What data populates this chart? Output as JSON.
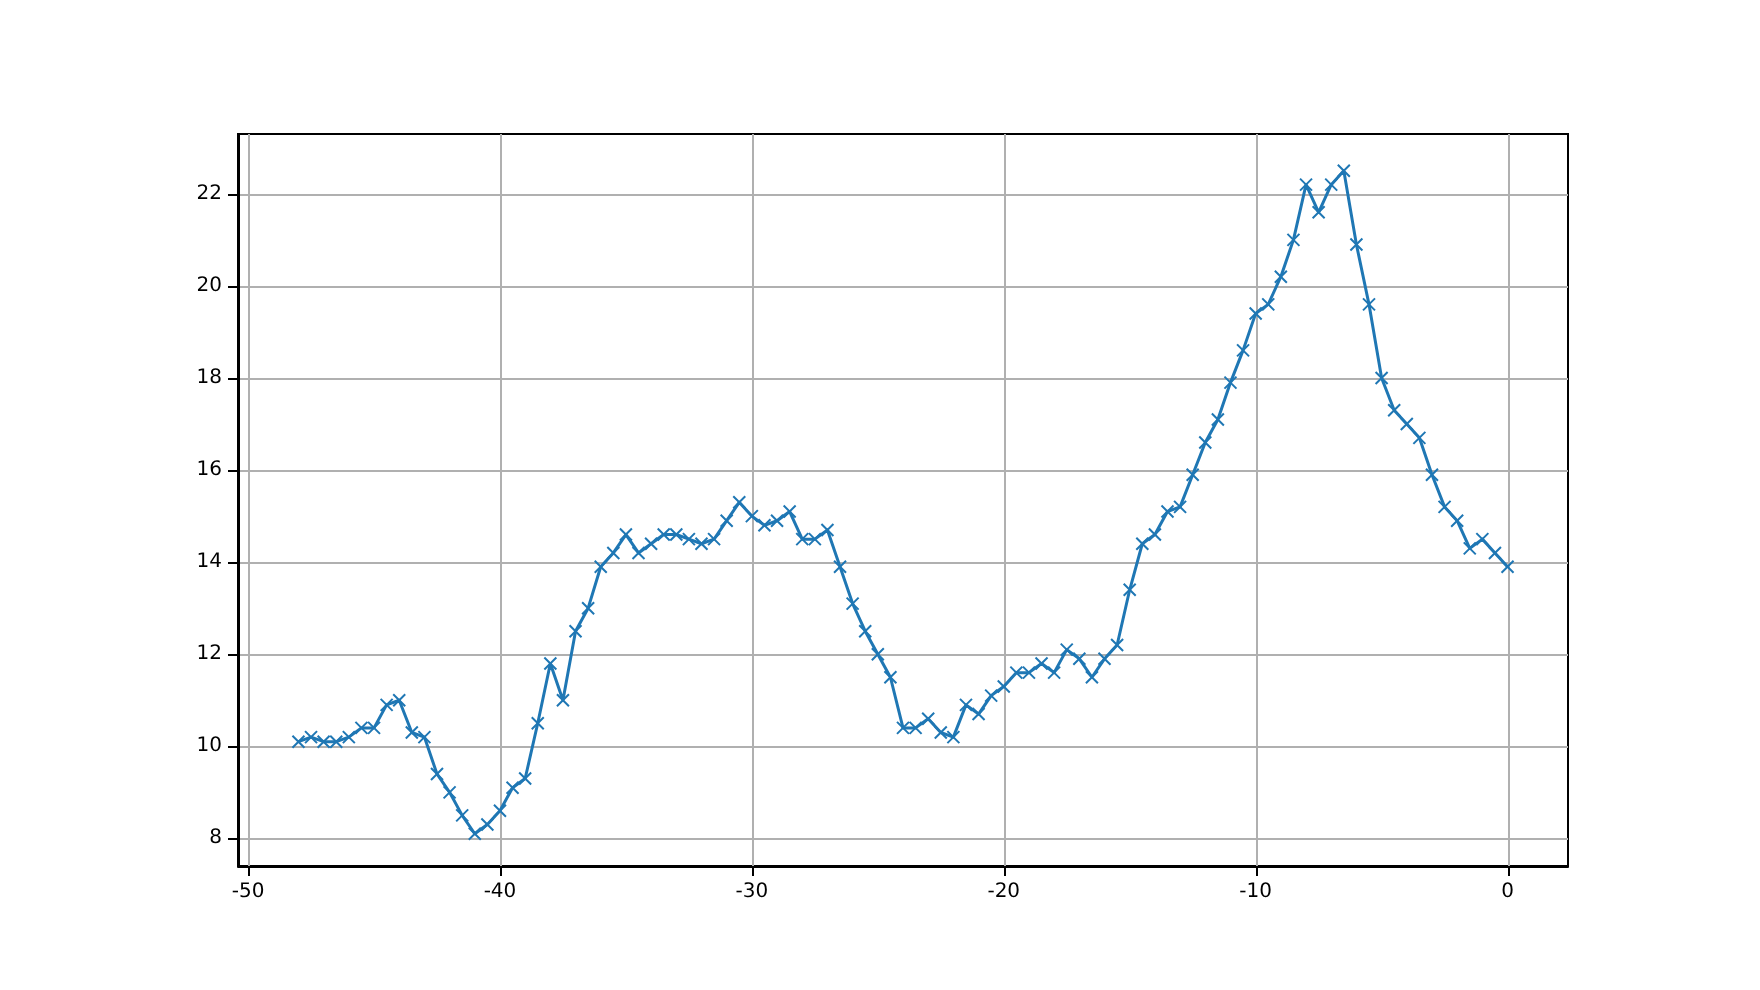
{
  "chart_data": {
    "type": "line",
    "marker": "cross",
    "grid": true,
    "xlim": [
      -50.4,
      2.4
    ],
    "ylim": [
      7.4,
      23.3
    ],
    "xticks": [
      -50,
      -40,
      -30,
      -20,
      -10,
      0
    ],
    "yticks": [
      8,
      10,
      12,
      14,
      16,
      18,
      20,
      22
    ],
    "x": [
      -48,
      -47.5,
      -47,
      -46.5,
      -46,
      -45.5,
      -45,
      -44.5,
      -44,
      -43.5,
      -43,
      -42.5,
      -42,
      -41.5,
      -41,
      -40.5,
      -40,
      -39.5,
      -39,
      -38.5,
      -38,
      -37.5,
      -37,
      -36.5,
      -36,
      -35.5,
      -35,
      -34.5,
      -34,
      -33.5,
      -33,
      -32.5,
      -32,
      -31.5,
      -31,
      -30.5,
      -30,
      -29.5,
      -29,
      -28.5,
      -28,
      -27.5,
      -27,
      -26.5,
      -26,
      -25.5,
      -25,
      -24.5,
      -24,
      -23.5,
      -23,
      -22.5,
      -22,
      -21.5,
      -21,
      -20.5,
      -20,
      -19.5,
      -19,
      -18.5,
      -18,
      -17.5,
      -17,
      -16.5,
      -16,
      -15.5,
      -15,
      -14.5,
      -14,
      -13.5,
      -13,
      -12.5,
      -12,
      -11.5,
      -11,
      -10.5,
      -10,
      -9.5,
      -9,
      -8.5,
      -8,
      -7.5,
      -7,
      -6.5,
      -6,
      -5.5,
      -5,
      -4.5,
      -4,
      -3.5,
      -3,
      -2.5,
      -2,
      -1.5,
      -1,
      -0.5,
      0
    ],
    "series": [
      {
        "color": "#1f77b4",
        "values": [
          10.1,
          10.2,
          10.1,
          10.1,
          10.2,
          10.4,
          10.4,
          10.9,
          11.0,
          10.3,
          10.2,
          9.4,
          9.0,
          8.5,
          8.1,
          8.3,
          8.6,
          9.1,
          9.3,
          10.5,
          11.8,
          11.0,
          12.5,
          13.0,
          13.9,
          14.2,
          14.6,
          14.2,
          14.4,
          14.6,
          14.6,
          14.5,
          14.4,
          14.5,
          14.9,
          15.3,
          15.0,
          14.8,
          14.9,
          15.1,
          14.5,
          14.5,
          14.7,
          13.9,
          13.1,
          12.5,
          12.0,
          11.5,
          10.4,
          10.4,
          10.6,
          10.3,
          10.2,
          10.9,
          10.7,
          11.1,
          11.3,
          11.6,
          11.6,
          11.8,
          11.6,
          12.1,
          11.9,
          11.5,
          11.9,
          12.2,
          13.4,
          14.4,
          14.6,
          15.1,
          15.2,
          15.9,
          16.6,
          17.1,
          17.9,
          18.6,
          19.4,
          19.6,
          20.2,
          21.0,
          22.2,
          21.6,
          22.2,
          22.5,
          20.9,
          19.6,
          18.0,
          17.3,
          17.0,
          16.7,
          15.9,
          15.2,
          14.9,
          14.3,
          14.5,
          14.2,
          13.9
        ]
      }
    ]
  }
}
